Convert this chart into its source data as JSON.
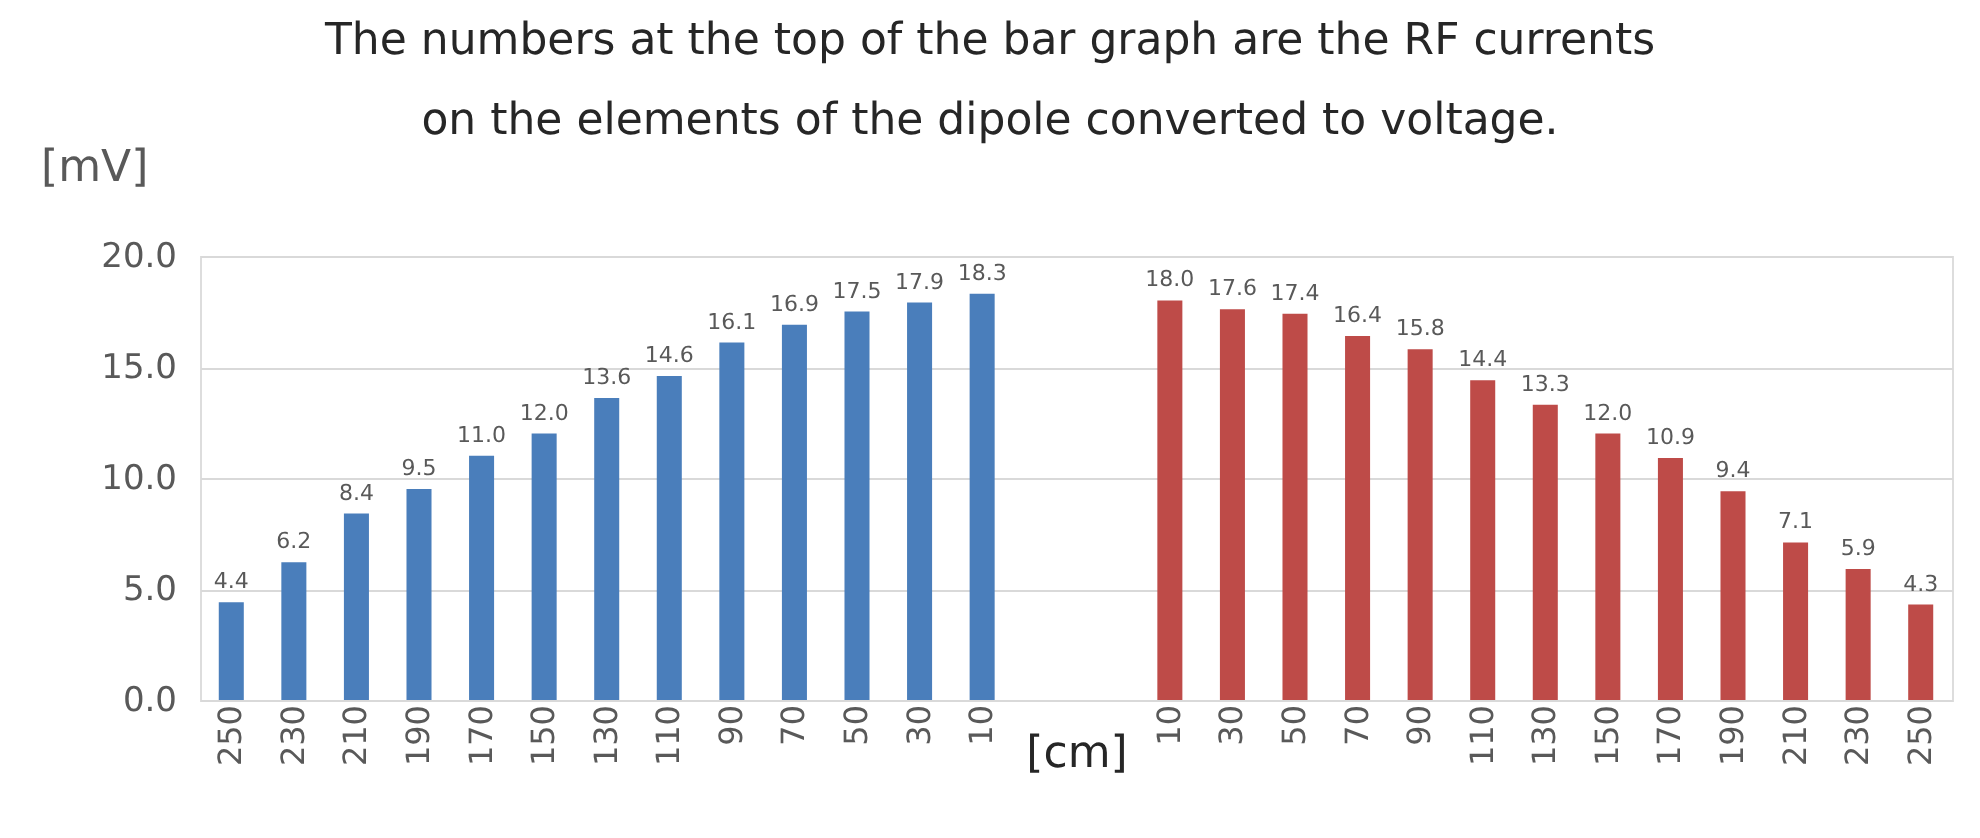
{
  "chart_data": {
    "type": "bar",
    "annotations": [
      "The numbers at the top of the bar graph are the RF currents on the elements of the dipole converted to voltage."
    ],
    "xlabel": "[cm]",
    "ylabel": "[mV]",
    "categories": [
      "250",
      "230",
      "210",
      "190",
      "170",
      "150",
      "130",
      "110",
      "90",
      "70",
      "50",
      "30",
      "10",
      null,
      null,
      "10",
      "30",
      "50",
      "70",
      "90",
      "110",
      "130",
      "150",
      "170",
      "190",
      "210",
      "230",
      "250"
    ],
    "series": [
      {
        "color": "#4a7ebb",
        "values": [
          4.4,
          6.2,
          8.4,
          9.5,
          11.0,
          12.0,
          13.6,
          14.6,
          16.1,
          16.9,
          17.5,
          17.9,
          18.3,
          null,
          null,
          null,
          null,
          null,
          null,
          null,
          null,
          null,
          null,
          null,
          null,
          null,
          null,
          null
        ],
        "value_labels": [
          "4.4",
          "6.2",
          "8.4",
          "9.5",
          "11.0",
          "12.0",
          "13.6",
          "14.6",
          "16.1",
          "16.9",
          "17.5",
          "17.9",
          "18.3",
          null,
          null,
          null,
          null,
          null,
          null,
          null,
          null,
          null,
          null,
          null,
          null,
          null,
          null,
          null
        ]
      },
      {
        "color": "#be4b48",
        "values": [
          null,
          null,
          null,
          null,
          null,
          null,
          null,
          null,
          null,
          null,
          null,
          null,
          null,
          null,
          null,
          18.0,
          17.6,
          17.4,
          16.4,
          15.8,
          14.4,
          13.3,
          12.0,
          10.9,
          9.4,
          7.1,
          5.9,
          4.3
        ],
        "value_labels": [
          null,
          null,
          null,
          null,
          null,
          null,
          null,
          null,
          null,
          null,
          null,
          null,
          null,
          null,
          null,
          "18.0",
          "17.6",
          "17.4",
          "16.4",
          "15.8",
          "14.4",
          "13.3",
          "12.0",
          "10.9",
          "9.4",
          "7.1",
          "5.9",
          "4.3"
        ]
      }
    ],
    "ylim": [
      0,
      20
    ],
    "yticks": [
      {
        "value": 0,
        "label": "0.0"
      },
      {
        "value": 5,
        "label": "5.0"
      },
      {
        "value": 10,
        "label": "10.0"
      },
      {
        "value": 15,
        "label": "15.0"
      },
      {
        "value": 20,
        "label": "20.0"
      }
    ],
    "grid": "y",
    "legend": false
  }
}
